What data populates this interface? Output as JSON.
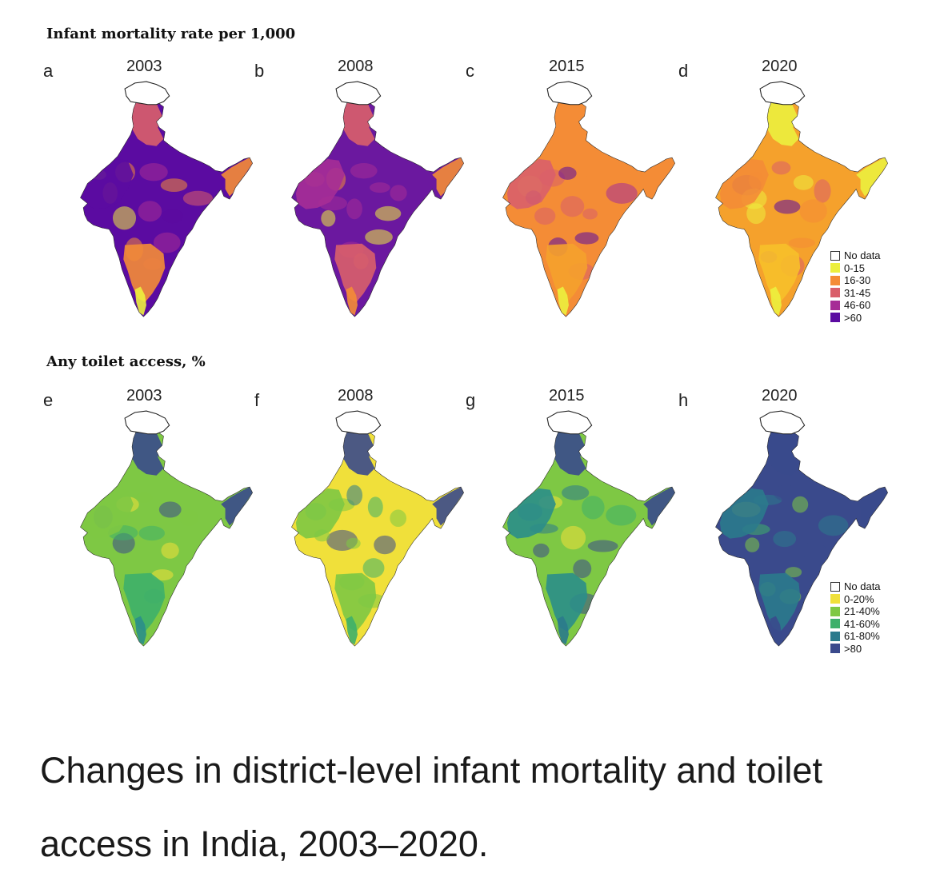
{
  "sections": [
    {
      "title": "Infant mortality rate per 1,000",
      "panels": [
        {
          "letter": "a",
          "year": "2003",
          "base": "#5b0ba1",
          "fills": {
            "north": "#d95f6a",
            "nw": "#5b0ba1",
            "ne": "#f48c36",
            "south": "#f48c36",
            "coast": "#ecef3e"
          }
        },
        {
          "letter": "b",
          "year": "2008",
          "base": "#6b189f",
          "fills": {
            "north": "#d95f6a",
            "nw": "#a62d96",
            "ne": "#f48c36",
            "south": "#d95f6a",
            "coast": "#f48c36"
          }
        },
        {
          "letter": "c",
          "year": "2015",
          "base": "#f48c36",
          "fills": {
            "north": "#f48c36",
            "nw": "#d95f6a",
            "ne": "#f48c36",
            "south": "#f5a12c",
            "coast": "#ecef3e"
          }
        },
        {
          "letter": "d",
          "year": "2020",
          "base": "#f5a12c",
          "fills": {
            "north": "#ecef3e",
            "nw": "#f48c36",
            "ne": "#ecef3e",
            "south": "#f7c02a",
            "coast": "#ecef3e"
          }
        }
      ],
      "legend": {
        "items": [
          {
            "label": "No data",
            "color": "#ffffff"
          },
          {
            "label": "0-15",
            "color": "#ecef3e"
          },
          {
            "label": "16-30",
            "color": "#f48c36"
          },
          {
            "label": "31-45",
            "color": "#d95f6a"
          },
          {
            "label": "46-60",
            "color": "#a62d96"
          },
          {
            "label": ">60",
            "color": "#5b0ba1"
          }
        ]
      }
    },
    {
      "title": "Any toilet access, %",
      "panels": [
        {
          "letter": "e",
          "year": "2003",
          "base": "#7ec844",
          "fills": {
            "north": "#3a4a8c",
            "nw": "#7ec844",
            "ne": "#3a4a8c",
            "south": "#3eb06a",
            "coast": "#2b8e8a"
          }
        },
        {
          "letter": "f",
          "year": "2008",
          "base": "#f0e03a",
          "fills": {
            "north": "#3a4a8c",
            "nw": "#7ec844",
            "ne": "#3a4a8c",
            "south": "#7ec844",
            "coast": "#3eb06a"
          }
        },
        {
          "letter": "g",
          "year": "2015",
          "base": "#7ec844",
          "fills": {
            "north": "#3a4a8c",
            "nw": "#2b8e8a",
            "ne": "#3a4a8c",
            "south": "#2b8e8a",
            "coast": "#2b7a8c"
          }
        },
        {
          "letter": "h",
          "year": "2020",
          "base": "#3a4a8c",
          "fills": {
            "north": "#3a4a8c",
            "nw": "#2b7a8c",
            "ne": "#3a4a8c",
            "south": "#2b7a8c",
            "coast": "#3a4a8c"
          }
        }
      ],
      "legend": {
        "items": [
          {
            "label": "No data",
            "color": "#ffffff"
          },
          {
            "label": "0-20%",
            "color": "#f0e03a"
          },
          {
            "label": "21-40%",
            "color": "#7ec844"
          },
          {
            "label": "41-60%",
            "color": "#3eb06a"
          },
          {
            "label": "61-80%",
            "color": "#2b7a8c"
          },
          {
            "label": ">80",
            "color": "#3a4a8c"
          }
        ]
      }
    }
  ],
  "caption": "Changes in district-level infant mortality and toilet access in India, 2003–2020.",
  "colors": {
    "border": "#222222",
    "kashmir_fill": "#ffffff"
  }
}
